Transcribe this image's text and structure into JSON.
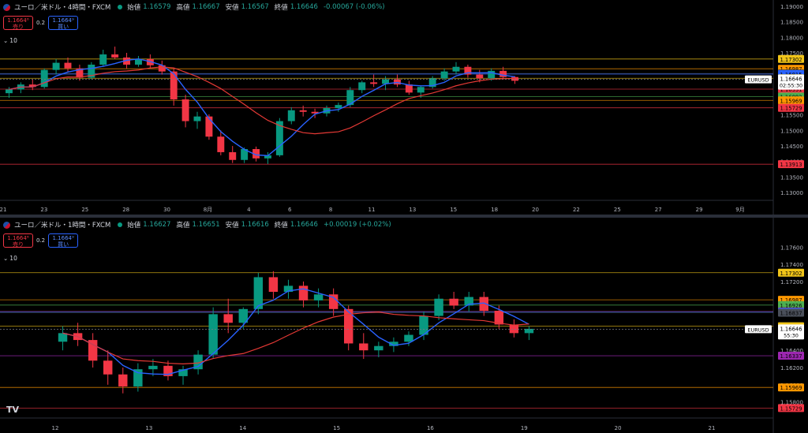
{
  "header_top": {
    "title": "ユーロ／米ドル・4時間・FXCM",
    "open_label": "始値",
    "open": "1.16579",
    "high_label": "高値",
    "high": "1.16667",
    "low_label": "安値",
    "low": "1.16567",
    "close_label": "終値",
    "close": "1.16646",
    "change": "-0.00067 (-0.06%)",
    "sell_price": "1.1664⁶",
    "sell_label": "売り",
    "buy_price": "1.1664⁹",
    "buy_label": "買い",
    "spread": "0.2",
    "indicator_count": "10"
  },
  "header_bottom": {
    "title": "ユーロ／米ドル・1時間・FXCM",
    "open_label": "始値",
    "open": "1.16627",
    "high_label": "高値",
    "high": "1.16651",
    "low_label": "安値",
    "low": "1.16616",
    "close_label": "終値",
    "close": "1.16646",
    "change": "+0.00019 (+0.02%)",
    "sell_price": "1.1664⁶",
    "sell_label": "売り",
    "buy_price": "1.1664⁹",
    "buy_label": "買い",
    "spread": "0.2",
    "indicator_count": "10"
  },
  "chart_data": [
    {
      "type": "candlestick",
      "title": "ユーロ／米ドル・4時間・FXCM",
      "ylim": [
        1.1285,
        1.1905
      ],
      "y_ticks": [
        "1.19000",
        "1.18500",
        "1.18000",
        "1.17500",
        "1.16500",
        "1.16000",
        "1.15500",
        "1.15000",
        "1.14500",
        "1.14000",
        "1.13500",
        "1.13000"
      ],
      "x_ticks": [
        "21",
        "23",
        "25",
        "28",
        "30",
        "8月",
        "4",
        "6",
        "8",
        "11",
        "13",
        "15",
        "18",
        "20",
        "22",
        "25",
        "27",
        "29",
        "9月"
      ],
      "horizontal_levels": [
        {
          "price": 1.17302,
          "label": "1.17302",
          "color": "#f0c419"
        },
        {
          "price": 1.16987,
          "label": "1.16987",
          "color": "#ff9800"
        },
        {
          "price": 1.16837,
          "label": "1.16837",
          "color": "#4a4f5a"
        },
        {
          "price": 1.16815,
          "label": "1.16815",
          "color": "#2962ff"
        },
        {
          "price": 1.1668,
          "label": "1.16680",
          "color": "#f0c419"
        },
        {
          "price": 1.16331,
          "label": "1.16331",
          "color": "#f23645"
        },
        {
          "price": 1.16092,
          "label": "1.16092",
          "color": "#4caf50"
        },
        {
          "price": 1.15969,
          "label": "1.15969",
          "color": "#ff9800"
        },
        {
          "price": 1.15729,
          "label": "1.15729",
          "color": "#f23645"
        },
        {
          "price": 1.13913,
          "label": "1.13913",
          "color": "#f23645"
        }
      ],
      "last_price": {
        "symbol": "EURUSD",
        "price": "1.16646",
        "countdown": "02:55:30",
        "value": 1.16646
      },
      "candles_ohlc": [
        [
          1.162,
          1.164,
          1.1605,
          1.1632
        ],
        [
          1.1632,
          1.1655,
          1.162,
          1.1648
        ],
        [
          1.1648,
          1.1665,
          1.163,
          1.164
        ],
        [
          1.164,
          1.17,
          1.1635,
          1.1695
        ],
        [
          1.1695,
          1.173,
          1.168,
          1.1718
        ],
        [
          1.1718,
          1.1735,
          1.169,
          1.17
        ],
        [
          1.17,
          1.1712,
          1.166,
          1.167
        ],
        [
          1.167,
          1.172,
          1.1665,
          1.1712
        ],
        [
          1.1712,
          1.176,
          1.1705,
          1.1745
        ],
        [
          1.1745,
          1.177,
          1.173,
          1.1735
        ],
        [
          1.1735,
          1.175,
          1.17,
          1.1712
        ],
        [
          1.1712,
          1.174,
          1.1705,
          1.173
        ],
        [
          1.173,
          1.1745,
          1.17,
          1.171
        ],
        [
          1.171,
          1.1725,
          1.168,
          1.169
        ],
        [
          1.169,
          1.17,
          1.158,
          1.16
        ],
        [
          1.16,
          1.1615,
          1.151,
          1.153
        ],
        [
          1.153,
          1.156,
          1.1505,
          1.1545
        ],
        [
          1.1545,
          1.1552,
          1.147,
          1.148
        ],
        [
          1.148,
          1.15,
          1.142,
          1.143
        ],
        [
          1.143,
          1.145,
          1.1395,
          1.1405
        ],
        [
          1.1405,
          1.1445,
          1.1395,
          1.144
        ],
        [
          1.144,
          1.1448,
          1.14,
          1.141
        ],
        [
          1.141,
          1.143,
          1.1392,
          1.142
        ],
        [
          1.142,
          1.154,
          1.1415,
          1.153
        ],
        [
          1.153,
          1.1575,
          1.152,
          1.1565
        ],
        [
          1.1565,
          1.158,
          1.1545,
          1.156
        ],
        [
          1.156,
          1.157,
          1.154,
          1.1555
        ],
        [
          1.1555,
          1.158,
          1.1545,
          1.1572
        ],
        [
          1.1572,
          1.159,
          1.156,
          1.1582
        ],
        [
          1.1582,
          1.164,
          1.1575,
          1.163
        ],
        [
          1.163,
          1.166,
          1.162,
          1.1655
        ],
        [
          1.1655,
          1.168,
          1.164,
          1.165
        ],
        [
          1.165,
          1.1675,
          1.163,
          1.1665
        ],
        [
          1.1665,
          1.168,
          1.164,
          1.1648
        ],
        [
          1.1648,
          1.166,
          1.1615,
          1.1622
        ],
        [
          1.1622,
          1.1645,
          1.1605,
          1.164
        ],
        [
          1.164,
          1.1675,
          1.1635,
          1.1668
        ],
        [
          1.1668,
          1.17,
          1.166,
          1.169
        ],
        [
          1.169,
          1.172,
          1.168,
          1.1705
        ],
        [
          1.1705,
          1.1712,
          1.167,
          1.168
        ],
        [
          1.168,
          1.1695,
          1.1655,
          1.1668
        ],
        [
          1.1668,
          1.17,
          1.166,
          1.1692
        ],
        [
          1.1692,
          1.1705,
          1.1665,
          1.1672
        ],
        [
          1.1672,
          1.1675,
          1.165,
          1.166
        ]
      ]
    },
    {
      "type": "candlestick",
      "title": "ユーロ／米ドル・1時間・FXCM",
      "ylim": [
        1.1565,
        1.1785
      ],
      "y_ticks": [
        "1.17600",
        "1.17400",
        "1.17200",
        "1.16400",
        "1.16200",
        "1.16000",
        "1.15800"
      ],
      "x_ticks": [
        "12",
        "13",
        "14",
        "15",
        "16",
        "19",
        "20",
        "21"
      ],
      "horizontal_levels": [
        {
          "price": 1.17302,
          "label": "1.17302",
          "color": "#f0c419"
        },
        {
          "price": 1.16987,
          "label": "1.16987",
          "color": "#ff9800"
        },
        {
          "price": 1.16926,
          "label": "1.16926",
          "color": "#4caf50"
        },
        {
          "price": 1.16852,
          "label": "1.16852",
          "color": "#f23645"
        },
        {
          "price": 1.16848,
          "label": "1.16848",
          "color": "#2962ff"
        },
        {
          "price": 1.16837,
          "label": "1.16837",
          "color": "#4a4f5a"
        },
        {
          "price": 1.1668,
          "label": "1.16680",
          "color": "#f0c419"
        },
        {
          "price": 1.16337,
          "label": "1.16337",
          "color": "#9c27b0"
        },
        {
          "price": 1.15969,
          "label": "1.15969",
          "color": "#ff9800"
        },
        {
          "price": 1.15729,
          "label": "1.15729",
          "color": "#f23645"
        }
      ],
      "last_price": {
        "symbol": "EURUSD",
        "price": "1.16646",
        "countdown": "55:30",
        "value": 1.16646
      },
      "candles_ohlc": [
        [
          1.165,
          1.1668,
          1.164,
          1.166
        ],
        [
          1.166,
          1.1672,
          1.1645,
          1.1652
        ],
        [
          1.1652,
          1.166,
          1.162,
          1.1628
        ],
        [
          1.1628,
          1.164,
          1.16,
          1.1612
        ],
        [
          1.1612,
          1.162,
          1.159,
          1.1598
        ],
        [
          1.1598,
          1.1625,
          1.1592,
          1.1618
        ],
        [
          1.1618,
          1.163,
          1.161,
          1.1622
        ],
        [
          1.1622,
          1.1628,
          1.1605,
          1.161
        ],
        [
          1.161,
          1.1622,
          1.16,
          1.1618
        ],
        [
          1.1618,
          1.164,
          1.1612,
          1.1635
        ],
        [
          1.1635,
          1.169,
          1.163,
          1.1682
        ],
        [
          1.1682,
          1.17,
          1.166,
          1.1672
        ],
        [
          1.1672,
          1.169,
          1.1665,
          1.1688
        ],
        [
          1.1688,
          1.173,
          1.1682,
          1.1725
        ],
        [
          1.1725,
          1.1732,
          1.17,
          1.1708
        ],
        [
          1.1708,
          1.1722,
          1.17,
          1.1715
        ],
        [
          1.1715,
          1.172,
          1.169,
          1.1698
        ],
        [
          1.1698,
          1.1712,
          1.169,
          1.1705
        ],
        [
          1.1705,
          1.1712,
          1.168,
          1.1688
        ],
        [
          1.1688,
          1.1692,
          1.164,
          1.1648
        ],
        [
          1.1648,
          1.166,
          1.163,
          1.164
        ],
        [
          1.164,
          1.165,
          1.1632,
          1.1645
        ],
        [
          1.1645,
          1.1655,
          1.1638,
          1.165
        ],
        [
          1.165,
          1.1662,
          1.1645,
          1.1658
        ],
        [
          1.1658,
          1.1685,
          1.1652,
          1.168
        ],
        [
          1.168,
          1.1705,
          1.1675,
          1.17
        ],
        [
          1.17,
          1.1708,
          1.1688,
          1.1692
        ],
        [
          1.1692,
          1.1708,
          1.1685,
          1.1702
        ],
        [
          1.1702,
          1.1708,
          1.168,
          1.1686
        ],
        [
          1.1686,
          1.1692,
          1.1665,
          1.167
        ],
        [
          1.167,
          1.1676,
          1.1655,
          1.166
        ],
        [
          1.166,
          1.1668,
          1.1652,
          1.1665
        ]
      ]
    }
  ]
}
